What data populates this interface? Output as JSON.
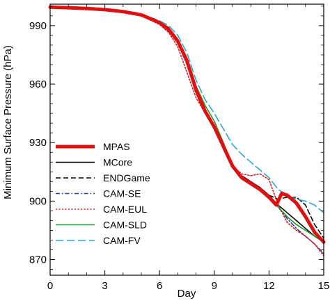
{
  "chart_data": {
    "type": "line",
    "xlabel": "Day",
    "ylabel": "Minimum Surface Pressure (hPa)",
    "xlim": [
      0,
      15
    ],
    "ylim": [
      862,
      1001
    ],
    "xticks": [
      0,
      3,
      6,
      9,
      12,
      15
    ],
    "yticks": [
      870,
      900,
      930,
      960,
      990
    ],
    "grid": false,
    "legend_position": "bottom-left",
    "series": [
      {
        "name": "MPAS",
        "color": "#e01010",
        "style": "solid",
        "width": "thick",
        "points": [
          [
            0,
            999.5
          ],
          [
            1,
            999.2
          ],
          [
            2,
            998.8
          ],
          [
            3,
            998.2
          ],
          [
            4,
            997.2
          ],
          [
            5,
            995.5
          ],
          [
            6,
            991.5
          ],
          [
            6.5,
            988
          ],
          [
            7,
            982
          ],
          [
            7.5,
            972
          ],
          [
            8,
            957
          ],
          [
            8.5,
            946
          ],
          [
            9,
            938
          ],
          [
            9.5,
            928
          ],
          [
            10,
            918
          ],
          [
            10.5,
            912
          ],
          [
            11,
            909
          ],
          [
            11.5,
            906
          ],
          [
            12,
            902
          ],
          [
            12.4,
            898
          ],
          [
            12.7,
            904
          ],
          [
            13,
            903
          ],
          [
            13.5,
            899
          ],
          [
            14,
            892
          ],
          [
            14.5,
            884
          ],
          [
            15,
            879
          ]
        ]
      },
      {
        "name": "MCore",
        "color": "#000000",
        "style": "solid",
        "width": "thin",
        "points": [
          [
            0,
            999.5
          ],
          [
            1,
            999.3
          ],
          [
            2,
            998.9
          ],
          [
            3,
            998.3
          ],
          [
            4,
            997.4
          ],
          [
            5,
            995.7
          ],
          [
            6,
            992
          ],
          [
            6.5,
            989
          ],
          [
            7,
            983
          ],
          [
            7.5,
            973
          ],
          [
            8,
            958
          ],
          [
            8.5,
            947
          ],
          [
            9,
            939
          ],
          [
            9.5,
            929
          ],
          [
            10,
            918
          ],
          [
            10.5,
            913
          ],
          [
            11,
            910
          ],
          [
            11.5,
            907
          ],
          [
            12,
            903
          ],
          [
            12.5,
            898
          ],
          [
            13,
            894
          ],
          [
            13.5,
            890
          ],
          [
            14,
            886
          ],
          [
            14.5,
            882
          ],
          [
            15,
            879
          ]
        ]
      },
      {
        "name": "ENDGame",
        "color": "#000000",
        "style": "dash",
        "width": "thin",
        "points": [
          [
            0,
            999.5
          ],
          [
            1,
            999.2
          ],
          [
            2,
            998.8
          ],
          [
            3,
            998.2
          ],
          [
            4,
            997.3
          ],
          [
            5,
            995.6
          ],
          [
            6,
            991.7
          ],
          [
            6.5,
            988.5
          ],
          [
            7,
            982.5
          ],
          [
            7.5,
            972.5
          ],
          [
            8,
            957.5
          ],
          [
            8.5,
            947
          ],
          [
            9,
            939
          ],
          [
            9.5,
            929
          ],
          [
            10,
            918
          ],
          [
            10.5,
            913
          ],
          [
            11,
            910
          ],
          [
            11.5,
            907
          ],
          [
            12,
            903
          ],
          [
            12.5,
            901
          ],
          [
            13,
            902
          ],
          [
            13.5,
            902
          ],
          [
            14,
            898
          ],
          [
            14.5,
            888
          ],
          [
            15,
            881
          ]
        ]
      },
      {
        "name": "CAM-SE",
        "color": "#1a3f9c",
        "style": "dashdot",
        "width": "thin",
        "points": [
          [
            0,
            999.5
          ],
          [
            1,
            999.2
          ],
          [
            2,
            998.8
          ],
          [
            3,
            998.2
          ],
          [
            4,
            997.2
          ],
          [
            5,
            995.4
          ],
          [
            6,
            991
          ],
          [
            6.5,
            987.5
          ],
          [
            7,
            981
          ],
          [
            7.5,
            970
          ],
          [
            8,
            956
          ],
          [
            8.5,
            946
          ],
          [
            9,
            938
          ],
          [
            9.5,
            928
          ],
          [
            10,
            917
          ],
          [
            10.5,
            912
          ],
          [
            11,
            910
          ],
          [
            11.5,
            907
          ],
          [
            12,
            903
          ],
          [
            12.5,
            897
          ],
          [
            13,
            891
          ],
          [
            13.5,
            886
          ],
          [
            14,
            882
          ],
          [
            14.5,
            878
          ],
          [
            15,
            873
          ]
        ]
      },
      {
        "name": "CAM-EUL",
        "color": "#d62020",
        "style": "dot",
        "width": "thin",
        "points": [
          [
            0,
            999.5
          ],
          [
            1,
            999.2
          ],
          [
            2,
            998.8
          ],
          [
            3,
            998.2
          ],
          [
            4,
            997.2
          ],
          [
            5,
            995.3
          ],
          [
            6,
            990.5
          ],
          [
            6.5,
            986.5
          ],
          [
            7,
            979
          ],
          [
            7.5,
            966
          ],
          [
            8,
            953
          ],
          [
            8.5,
            945
          ],
          [
            9,
            938
          ],
          [
            9.5,
            928
          ],
          [
            10,
            918
          ],
          [
            10.5,
            914
          ],
          [
            11,
            913
          ],
          [
            11.5,
            914
          ],
          [
            12,
            911
          ],
          [
            12.5,
            898
          ],
          [
            13,
            889
          ],
          [
            13.5,
            885
          ],
          [
            14,
            882
          ],
          [
            14.5,
            878
          ],
          [
            15,
            872
          ]
        ]
      },
      {
        "name": "CAM-SLD",
        "color": "#1e9a2a",
        "style": "solid",
        "width": "thin",
        "points": [
          [
            0,
            999.5
          ],
          [
            1,
            999.2
          ],
          [
            2,
            998.8
          ],
          [
            3,
            998.2
          ],
          [
            4,
            997.3
          ],
          [
            5,
            995.6
          ],
          [
            6,
            991.8
          ],
          [
            6.5,
            988.5
          ],
          [
            7,
            983
          ],
          [
            7.5,
            973.5
          ],
          [
            8,
            959
          ],
          [
            8.5,
            949
          ],
          [
            9,
            941
          ],
          [
            9.5,
            930
          ],
          [
            10,
            918
          ],
          [
            10.5,
            912
          ],
          [
            11,
            909
          ],
          [
            11.5,
            906
          ],
          [
            12,
            902
          ],
          [
            12.5,
            897
          ],
          [
            13,
            892
          ],
          [
            13.5,
            888
          ],
          [
            14,
            885
          ],
          [
            14.5,
            882
          ],
          [
            15,
            879
          ]
        ]
      },
      {
        "name": "CAM-FV",
        "color": "#29a8cf",
        "style": "longdash",
        "width": "thin",
        "points": [
          [
            0,
            999.5
          ],
          [
            1,
            999.3
          ],
          [
            2,
            999
          ],
          [
            3,
            998.5
          ],
          [
            4,
            997.6
          ],
          [
            5,
            996
          ],
          [
            6,
            992.5
          ],
          [
            6.5,
            990
          ],
          [
            7,
            985
          ],
          [
            7.5,
            976
          ],
          [
            8,
            962
          ],
          [
            8.5,
            952
          ],
          [
            9,
            945
          ],
          [
            9.5,
            937
          ],
          [
            10,
            929
          ],
          [
            10.5,
            924
          ],
          [
            11,
            920
          ],
          [
            11.5,
            916
          ],
          [
            12,
            912
          ],
          [
            12.5,
            906
          ],
          [
            13,
            903
          ],
          [
            13.5,
            901
          ],
          [
            14,
            900
          ],
          [
            14.5,
            898
          ],
          [
            15,
            894
          ]
        ]
      }
    ]
  }
}
